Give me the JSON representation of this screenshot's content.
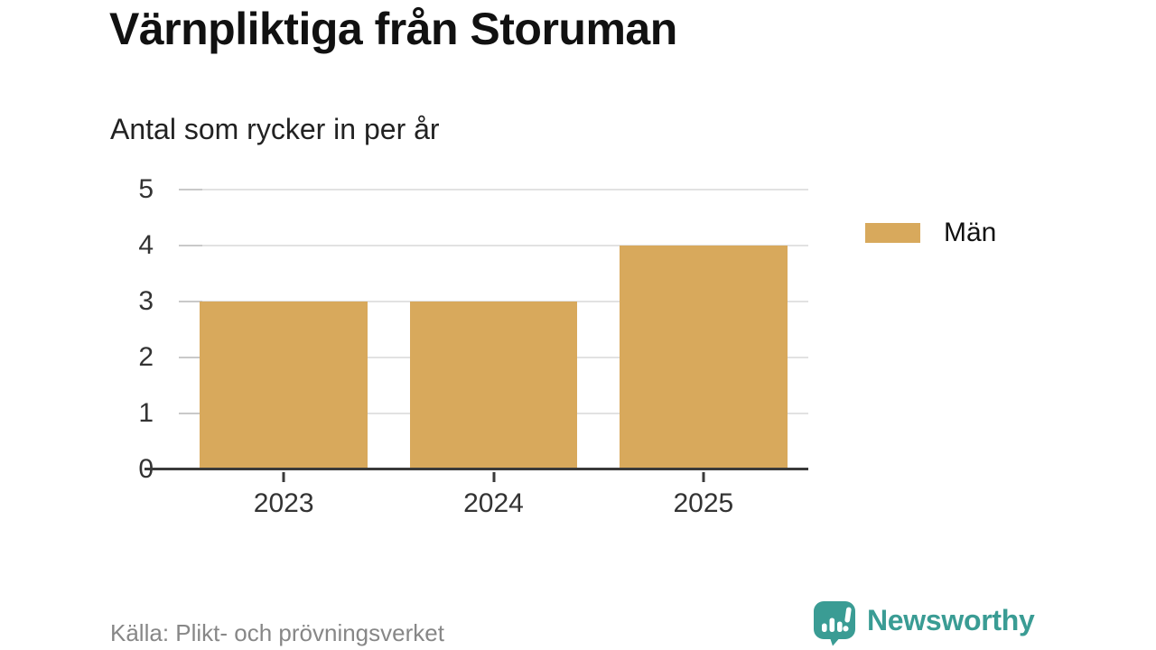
{
  "title": "Värnpliktiga från Storuman",
  "subtitle": "Antal som rycker in per år",
  "source": "Källa: Plikt- och prövningsverket",
  "brand": {
    "name": "Newsworthy",
    "icon": "newsworthy-bar-chart-speech-bubble-icon"
  },
  "legend": [
    {
      "label": "Män",
      "color": "#d8a95c"
    }
  ],
  "colors": {
    "bar": "#d8a95c",
    "grid": "#e2e2e2",
    "tick": "#c9c9c9",
    "axis": "#3a3a3a",
    "axis_text": "#333333",
    "title_text": "#111111",
    "subtitle_text": "#222222",
    "source_text": "#878787",
    "brand_teal": "#3a9c94"
  },
  "chart_data": {
    "type": "bar",
    "title": "Värnpliktiga från Storuman",
    "subtitle": "Antal som rycker in per år",
    "categories": [
      "2023",
      "2024",
      "2025"
    ],
    "series": [
      {
        "name": "Män",
        "values": [
          3,
          3,
          4
        ]
      }
    ],
    "xlabel": "",
    "ylabel": "Antal som rycker in per år",
    "ylim": [
      0,
      5
    ],
    "yticks": [
      0,
      1,
      2,
      3,
      4,
      5
    ],
    "grid": true,
    "legend_position": "right",
    "source": "Källa: Plikt- och prövningsverket"
  }
}
